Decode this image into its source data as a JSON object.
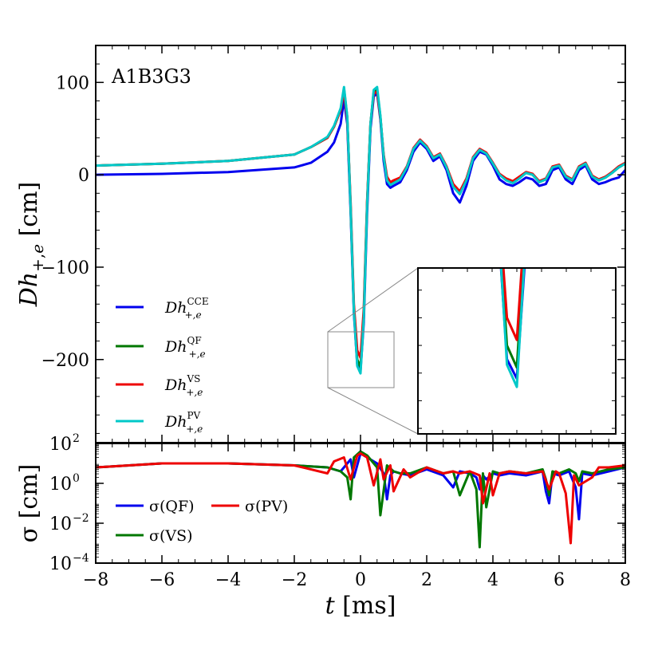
{
  "chart_data": [
    {
      "type": "line",
      "title": "A1B3G3",
      "xlabel": "t [ms]",
      "ylabel": "Dh+,e [cm]",
      "xlim": [
        -8,
        8
      ],
      "ylim": [
        -290,
        140
      ],
      "y_ticks": [
        100,
        0,
        -100,
        -200
      ],
      "y_tick_labels": [
        "100",
        "0",
        "−100",
        "−200"
      ],
      "series": [
        {
          "name": "CCE",
          "legend_label": "Dh",
          "legend_sup": "CCE",
          "legend_sub": "+,e",
          "color": "#0000ee",
          "x": [
            -8,
            -6,
            -4,
            -2,
            -1.5,
            -1,
            -0.8,
            -0.6,
            -0.5,
            -0.4,
            -0.3,
            -0.2,
            -0.1,
            0,
            0.1,
            0.2,
            0.3,
            0.4,
            0.5,
            0.6,
            0.7,
            0.8,
            0.9,
            1.0,
            1.2,
            1.4,
            1.6,
            1.8,
            2.0,
            2.2,
            2.4,
            2.6,
            2.8,
            3.0,
            3.2,
            3.4,
            3.6,
            3.8,
            4.0,
            4.2,
            4.4,
            4.6,
            4.8,
            5.0,
            5.2,
            5.4,
            5.6,
            5.8,
            6.0,
            6.2,
            6.4,
            6.6,
            6.8,
            7.0,
            7.2,
            7.4,
            7.6,
            7.8,
            8.0
          ],
          "y": [
            0,
            1,
            3,
            8,
            13,
            25,
            35,
            55,
            82,
            55,
            -40,
            -150,
            -205,
            -212,
            -160,
            -40,
            50,
            85,
            88,
            60,
            15,
            -10,
            -14,
            -12,
            -8,
            5,
            25,
            35,
            28,
            15,
            20,
            5,
            -20,
            -30,
            -12,
            15,
            25,
            22,
            10,
            -5,
            -10,
            -12,
            -8,
            -3,
            -5,
            -12,
            -10,
            5,
            8,
            -5,
            -10,
            5,
            10,
            -5,
            -10,
            -8,
            -5,
            -3,
            5
          ]
        },
        {
          "name": "QF",
          "legend_label": "Dh",
          "legend_sup": "QF",
          "legend_sub": "+,e",
          "color": "#007700",
          "x": [
            -8,
            -6,
            -4,
            -2,
            -1.5,
            -1,
            -0.8,
            -0.6,
            -0.5,
            -0.4,
            -0.3,
            -0.2,
            -0.1,
            0,
            0.1,
            0.2,
            0.3,
            0.4,
            0.5,
            0.6,
            0.7,
            0.8,
            0.9,
            1.0,
            1.2,
            1.4,
            1.6,
            1.8,
            2.0,
            2.2,
            2.4,
            2.6,
            2.8,
            3.0,
            3.2,
            3.4,
            3.6,
            3.8,
            4.0,
            4.2,
            4.4,
            4.6,
            4.8,
            5.0,
            5.2,
            5.4,
            5.6,
            5.8,
            6.0,
            6.2,
            6.4,
            6.6,
            6.8,
            7.0,
            7.2,
            7.4,
            7.6,
            7.8,
            8.0
          ],
          "y": [
            10,
            12,
            15,
            22,
            30,
            40,
            52,
            70,
            93,
            62,
            -35,
            -145,
            -200,
            -208,
            -150,
            -30,
            55,
            90,
            92,
            63,
            20,
            -5,
            -10,
            -8,
            -4,
            8,
            28,
            37,
            30,
            18,
            22,
            8,
            -12,
            -20,
            -5,
            18,
            27,
            23,
            12,
            0,
            -5,
            -8,
            -3,
            2,
            0,
            -8,
            -5,
            8,
            10,
            -2,
            -6,
            8,
            12,
            -2,
            -6,
            -3,
            2,
            8,
            12
          ]
        },
        {
          "name": "VS",
          "legend_label": "Dh",
          "legend_sup": "VS",
          "legend_sub": "+,e",
          "color": "#ee0000",
          "x": [
            -8,
            -6,
            -4,
            -2,
            -1.5,
            -1,
            -0.8,
            -0.6,
            -0.5,
            -0.4,
            -0.3,
            -0.2,
            -0.1,
            0,
            0.1,
            0.2,
            0.3,
            0.4,
            0.5,
            0.6,
            0.7,
            0.8,
            0.9,
            1.0,
            1.2,
            1.4,
            1.6,
            1.8,
            2.0,
            2.2,
            2.4,
            2.6,
            2.8,
            3.0,
            3.2,
            3.4,
            3.6,
            3.8,
            4.0,
            4.2,
            4.4,
            4.6,
            4.8,
            5.0,
            5.2,
            5.4,
            5.6,
            5.8,
            6.0,
            6.2,
            6.4,
            6.6,
            6.8,
            7.0,
            7.2,
            7.4,
            7.6,
            7.8,
            8.0
          ],
          "y": [
            10,
            12,
            15,
            22,
            30,
            40,
            52,
            70,
            90,
            60,
            -30,
            -140,
            -190,
            -198,
            -145,
            -28,
            55,
            88,
            90,
            62,
            22,
            -2,
            -8,
            -6,
            -3,
            9,
            29,
            38,
            31,
            19,
            23,
            9,
            -10,
            -18,
            -4,
            19,
            28,
            24,
            13,
            1,
            -4,
            -7,
            -2,
            3,
            1,
            -7,
            -4,
            9,
            11,
            -1,
            -5,
            9,
            13,
            -1,
            -5,
            -2,
            3,
            9,
            13
          ]
        },
        {
          "name": "PV",
          "legend_label": "Dh",
          "legend_sup": "PV",
          "legend_sub": "+,e",
          "color": "#00c8c8",
          "x": [
            -8,
            -6,
            -4,
            -2,
            -1.5,
            -1,
            -0.8,
            -0.6,
            -0.5,
            -0.4,
            -0.3,
            -0.2,
            -0.1,
            0,
            0.1,
            0.2,
            0.3,
            0.4,
            0.5,
            0.6,
            0.7,
            0.8,
            0.9,
            1.0,
            1.2,
            1.4,
            1.6,
            1.8,
            2.0,
            2.2,
            2.4,
            2.6,
            2.8,
            3.0,
            3.2,
            3.4,
            3.6,
            3.8,
            4.0,
            4.2,
            4.4,
            4.6,
            4.8,
            5.0,
            5.2,
            5.4,
            5.6,
            5.8,
            6.0,
            6.2,
            6.4,
            6.6,
            6.8,
            7.0,
            7.2,
            7.4,
            7.6,
            7.8,
            8.0
          ],
          "y": [
            10,
            12,
            15,
            22,
            30,
            41,
            53,
            72,
            95,
            63,
            -35,
            -147,
            -207,
            -215,
            -155,
            -32,
            55,
            92,
            95,
            64,
            20,
            -6,
            -11,
            -9,
            -5,
            8,
            28,
            37,
            30,
            18,
            22,
            8,
            -13,
            -21,
            -6,
            18,
            27,
            23,
            12,
            0,
            -6,
            -9,
            -4,
            2,
            0,
            -8,
            -5,
            8,
            10,
            -2,
            -6,
            8,
            12,
            -2,
            -6,
            -3,
            2,
            8,
            12
          ]
        }
      ],
      "inset": {
        "xlim": [
          -1,
          1
        ],
        "ylim": [
          -232,
          -172
        ]
      }
    },
    {
      "type": "line",
      "xlabel": "t [ms]",
      "ylabel": "σ [cm]",
      "xlim": [
        -8,
        8
      ],
      "yscale": "log",
      "ylim_exp": [
        -4,
        2
      ],
      "y_ticks_exp": [
        2,
        0,
        -2,
        -4
      ],
      "y_tick_labels": [
        "10",
        "10",
        "10",
        "10"
      ],
      "y_tick_exps": [
        "2",
        "0",
        "−2",
        "−4"
      ],
      "x_ticks": [
        -8,
        -6,
        -4,
        -2,
        0,
        2,
        4,
        6,
        8
      ],
      "x_tick_labels": [
        "−8",
        "−6",
        "−4",
        "−2",
        "0",
        "2",
        "4",
        "6",
        "8"
      ],
      "series": [
        {
          "name": "σ(QF)",
          "color": "#0000ee",
          "x": [
            -8,
            -6,
            -4,
            -2,
            -1,
            -0.6,
            -0.3,
            -0.2,
            0,
            0.2,
            0.5,
            0.7,
            0.8,
            0.9,
            1.0,
            1.2,
            1.5,
            2,
            2.5,
            2.8,
            3.0,
            3.3,
            3.5,
            3.6,
            3.7,
            3.8,
            4.0,
            4.2,
            4.5,
            5,
            5.5,
            5.6,
            5.7,
            5.8,
            6.0,
            6.3,
            6.5,
            6.6,
            6.7,
            7.0,
            7.5,
            8
          ],
          "log_y": [
            0.8,
            1.0,
            1.0,
            0.9,
            0.8,
            0.6,
            1.2,
            0.3,
            1.5,
            1.3,
            1.0,
            0.5,
            -0.8,
            0.4,
            0.6,
            0.5,
            0.4,
            0.7,
            0.4,
            -0.2,
            0.6,
            0.5,
            0.3,
            -0.3,
            0.4,
            0.2,
            0.5,
            0.4,
            0.5,
            0.4,
            0.6,
            -0.4,
            -1.0,
            0.5,
            0.4,
            0.6,
            -0.2,
            -1.8,
            0.5,
            0.4,
            0.6,
            0.8
          ]
        },
        {
          "name": "σ(VS)",
          "color": "#007700",
          "x": [
            -8,
            -6,
            -4,
            -2,
            -1,
            -0.6,
            -0.4,
            -0.3,
            -0.2,
            0,
            0.2,
            0.5,
            0.6,
            0.8,
            1.0,
            1.2,
            1.5,
            2,
            2.5,
            2.8,
            3.0,
            3.3,
            3.5,
            3.6,
            3.7,
            3.8,
            4.0,
            4.2,
            4.5,
            5,
            5.5,
            5.6,
            5.7,
            5.8,
            6.0,
            6.3,
            6.5,
            6.6,
            6.7,
            7.0,
            7.5,
            8
          ],
          "log_y": [
            0.8,
            1.0,
            1.0,
            0.9,
            0.8,
            0.6,
            0.3,
            -0.8,
            1.3,
            1.6,
            1.4,
            0.8,
            -1.6,
            0.9,
            0.6,
            0.5,
            0.5,
            0.8,
            0.5,
            0.6,
            -0.6,
            0.6,
            -0.3,
            -3.2,
            0.5,
            -1.2,
            0.6,
            0.5,
            0.6,
            0.5,
            0.7,
            0.2,
            -0.6,
            0.6,
            0.5,
            0.7,
            0.5,
            0.1,
            0.6,
            0.5,
            0.7,
            0.8
          ]
        },
        {
          "name": "σ(PV)",
          "color": "#ee0000",
          "x": [
            -8,
            -6,
            -4,
            -2,
            -1,
            -0.8,
            -0.5,
            -0.3,
            -0.1,
            0,
            0.2,
            0.4,
            0.6,
            0.7,
            0.9,
            1.0,
            1.3,
            1.5,
            2,
            2.5,
            2.8,
            3.0,
            3.3,
            3.6,
            3.7,
            3.9,
            4.0,
            4.2,
            4.5,
            5,
            5.5,
            5.7,
            5.9,
            6.0,
            6.2,
            6.35,
            6.45,
            6.6,
            7.0,
            7.2,
            7.5,
            8
          ],
          "log_y": [
            0.8,
            1.0,
            1.0,
            0.9,
            0.5,
            1.1,
            1.3,
            0.2,
            1.4,
            1.5,
            1.3,
            -0.1,
            1.2,
            0.2,
            0.9,
            -0.4,
            0.7,
            0.3,
            0.8,
            0.5,
            0.6,
            0.5,
            0.6,
            0.4,
            -1.0,
            0.5,
            -0.6,
            0.5,
            0.6,
            0.5,
            0.6,
            -0.3,
            0.6,
            0.5,
            -0.5,
            -3.0,
            0.4,
            -0.1,
            0.3,
            0.8,
            0.8,
            0.9
          ]
        }
      ]
    }
  ]
}
